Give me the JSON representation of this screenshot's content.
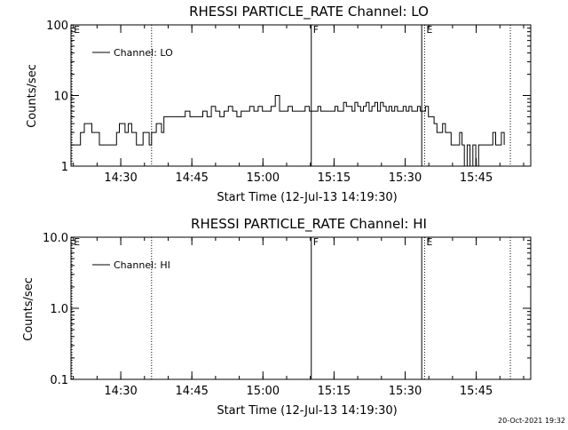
{
  "footer": {
    "date_stamp": "20-Oct-2021 19:32"
  },
  "chart_data": [
    {
      "type": "line",
      "title": "RHESSI PARTICLE_RATE Channel: LO",
      "xlabel": "Start Time (12-Jul-13 14:19:30)",
      "ylabel": "Counts/sec",
      "y_scale": "log",
      "x_unit": "minutes after 14:19:30 on 12-Jul-13",
      "xlim": [
        0,
        97
      ],
      "ylim": [
        1,
        100
      ],
      "x_ticks": [
        {
          "x": 10.5,
          "label": "14:30"
        },
        {
          "x": 25.5,
          "label": "14:45"
        },
        {
          "x": 40.5,
          "label": "15:00"
        },
        {
          "x": 55.5,
          "label": "15:15"
        },
        {
          "x": 70.5,
          "label": "15:30"
        },
        {
          "x": 85.5,
          "label": "15:45"
        }
      ],
      "y_ticks": [
        {
          "y": 1,
          "label": "1"
        },
        {
          "y": 10,
          "label": "10"
        },
        {
          "y": 100,
          "label": "100"
        }
      ],
      "legend": {
        "position": "top-left",
        "entries": [
          "Channel: LO"
        ]
      },
      "markers": [
        {
          "x": 0.2,
          "label": "E",
          "style": "dotted"
        },
        {
          "x": 17.0,
          "label": "",
          "style": "dotted"
        },
        {
          "x": 50.7,
          "label": "F",
          "style": "solid"
        },
        {
          "x": 74.0,
          "label": "",
          "style": "solid"
        },
        {
          "x": 74.6,
          "label": "E",
          "style": "dotted"
        },
        {
          "x": 92.7,
          "label": "",
          "style": "dotted"
        }
      ],
      "series": [
        {
          "name": "Channel: LO",
          "x": [
            0.0,
            1.2,
            2.0,
            2.8,
            3.6,
            4.4,
            5.2,
            6.0,
            7.5,
            9.0,
            9.6,
            10.2,
            10.8,
            11.4,
            12.1,
            12.8,
            13.8,
            14.5,
            15.2,
            15.8,
            16.5,
            17.0,
            17.5,
            18.0,
            18.6,
            19.1,
            19.6,
            20.2,
            20.8,
            21.6,
            22.4,
            23.2,
            24.1,
            25.1,
            26.0,
            26.9,
            27.8,
            28.7,
            29.6,
            30.5,
            31.4,
            32.3,
            33.2,
            34.1,
            35.0,
            35.9,
            36.8,
            37.7,
            38.6,
            39.5,
            40.4,
            41.3,
            42.2,
            43.1,
            44.0,
            44.9,
            45.8,
            46.7,
            47.6,
            48.5,
            49.4,
            50.3,
            50.9,
            51.5,
            52.1,
            52.7,
            53.3,
            53.9,
            54.5,
            55.1,
            55.7,
            56.3,
            56.9,
            57.5,
            58.1,
            58.7,
            59.3,
            59.9,
            60.5,
            61.1,
            61.7,
            62.3,
            62.9,
            63.5,
            64.1,
            64.7,
            65.3,
            65.9,
            66.5,
            67.1,
            67.7,
            68.3,
            68.9,
            69.5,
            70.1,
            70.7,
            71.3,
            71.9,
            72.5,
            73.1,
            73.7,
            74.2,
            74.8,
            75.4,
            76.0,
            76.6,
            77.2,
            77.8,
            78.4,
            79.0,
            79.6,
            80.2,
            80.6,
            81.0,
            81.5,
            82.0,
            82.5,
            83.0,
            83.6,
            84.2,
            84.8,
            85.4,
            86.0,
            86.6,
            87.2,
            87.8,
            88.4,
            89.0,
            89.6,
            90.2,
            90.8,
            91.4
          ],
          "y": [
            2,
            2,
            3,
            4,
            4,
            3,
            3,
            2,
            2,
            2,
            3,
            4,
            4,
            3,
            4,
            3,
            2,
            2,
            3,
            3,
            2,
            3,
            3,
            4,
            4,
            3,
            5,
            5,
            5,
            5,
            5,
            5,
            6,
            5,
            5,
            5,
            6,
            5,
            7,
            6,
            5,
            6,
            7,
            6,
            5,
            6,
            6,
            7,
            6,
            7,
            6,
            6,
            7,
            10,
            6,
            6,
            7,
            6,
            6,
            6,
            7,
            6,
            6,
            6,
            7,
            6,
            6,
            6,
            6,
            6,
            7,
            6,
            6,
            8,
            7,
            7,
            6,
            8,
            7,
            6,
            7,
            8,
            6,
            7,
            8,
            6,
            8,
            7,
            6,
            7,
            6,
            7,
            6,
            6,
            7,
            6,
            7,
            6,
            6,
            7,
            6,
            6,
            7,
            5,
            5,
            4,
            3,
            3,
            4,
            3,
            3,
            2,
            2,
            2,
            2,
            3,
            2,
            1,
            2,
            1,
            2,
            1,
            2,
            2,
            2,
            2,
            2,
            3,
            2,
            2,
            3,
            2
          ]
        }
      ]
    },
    {
      "type": "line",
      "title": "RHESSI PARTICLE_RATE Channel: HI",
      "xlabel": "Start Time (12-Jul-13 14:19:30)",
      "ylabel": "Counts/sec",
      "y_scale": "log",
      "x_unit": "minutes after 14:19:30 on 12-Jul-13",
      "xlim": [
        0,
        97
      ],
      "ylim": [
        0.1,
        10
      ],
      "x_ticks": [
        {
          "x": 10.5,
          "label": "14:30"
        },
        {
          "x": 25.5,
          "label": "14:45"
        },
        {
          "x": 40.5,
          "label": "15:00"
        },
        {
          "x": 55.5,
          "label": "15:15"
        },
        {
          "x": 70.5,
          "label": "15:30"
        },
        {
          "x": 85.5,
          "label": "15:45"
        }
      ],
      "y_ticks": [
        {
          "y": 0.1,
          "label": "0.1"
        },
        {
          "y": 1,
          "label": "1.0"
        },
        {
          "y": 10,
          "label": "10.0"
        }
      ],
      "legend": {
        "position": "top-left",
        "entries": [
          "Channel: HI"
        ]
      },
      "markers": [
        {
          "x": 0.2,
          "label": "E",
          "style": "dotted"
        },
        {
          "x": 17.0,
          "label": "",
          "style": "dotted"
        },
        {
          "x": 50.7,
          "label": "F",
          "style": "solid"
        },
        {
          "x": 74.0,
          "label": "",
          "style": "solid"
        },
        {
          "x": 74.6,
          "label": "E",
          "style": "dotted"
        },
        {
          "x": 92.7,
          "label": "",
          "style": "dotted"
        }
      ],
      "series": [
        {
          "name": "Channel: HI",
          "x": [],
          "y": []
        }
      ]
    }
  ]
}
